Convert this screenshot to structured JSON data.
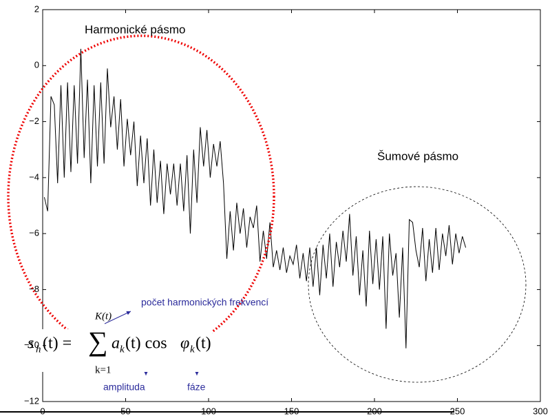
{
  "chart_data": {
    "type": "line",
    "xlim": [
      0,
      300
    ],
    "xticks": [
      0,
      50,
      100,
      150,
      200,
      250,
      300
    ],
    "ylim": [
      -12,
      2
    ],
    "yticks": [
      {
        "value": -12,
        "label": "−12"
      },
      {
        "value": -10,
        "label": "−10"
      },
      {
        "value": -8,
        "label": "−8"
      },
      {
        "value": -6,
        "label": "−6"
      },
      {
        "value": -4,
        "label": "−4"
      },
      {
        "value": -2,
        "label": "−2"
      },
      0,
      2
    ],
    "color": "#000000",
    "x": [
      1,
      3,
      5,
      7,
      9,
      11,
      13,
      15,
      17,
      19,
      21,
      23,
      25,
      27,
      29,
      31,
      33,
      35,
      37,
      39,
      41,
      43,
      45,
      47,
      49,
      51,
      53,
      55,
      57,
      59,
      61,
      63,
      65,
      67,
      69,
      71,
      73,
      75,
      77,
      79,
      81,
      83,
      85,
      87,
      89,
      91,
      93,
      95,
      97,
      99,
      101,
      103,
      105,
      107,
      109,
      111,
      113,
      115,
      117,
      119,
      121,
      123,
      125,
      127,
      129,
      131,
      133,
      135,
      137,
      139,
      141,
      143,
      145,
      147,
      149,
      151,
      153,
      155,
      157,
      159,
      161,
      163,
      165,
      167,
      169,
      171,
      173,
      175,
      177,
      179,
      181,
      183,
      185,
      187,
      189,
      191,
      193,
      195,
      197,
      199,
      201,
      203,
      205,
      207,
      209,
      211,
      213,
      215,
      217,
      219,
      221,
      223,
      225,
      227,
      229,
      231,
      233,
      235,
      237,
      239,
      241,
      243,
      245,
      247,
      249,
      251,
      253,
      255
    ],
    "values": [
      -4.7,
      -5.2,
      -1.1,
      -1.4,
      -4.2,
      -0.7,
      -4.0,
      -0.6,
      -3.8,
      -0.7,
      -3.5,
      0.6,
      -3.3,
      -0.5,
      -4.2,
      -0.7,
      -3.6,
      -0.6,
      -3.5,
      -0.1,
      -2.2,
      -1.1,
      -3.0,
      -1.2,
      -3.6,
      -1.9,
      -3.2,
      -2.0,
      -4.3,
      -2.5,
      -4.2,
      -2.6,
      -5.0,
      -3.0,
      -4.9,
      -3.4,
      -5.3,
      -3.5,
      -4.6,
      -3.5,
      -5.0,
      -3.5,
      -5.2,
      -3.2,
      -6.0,
      -3.0,
      -4.9,
      -2.2,
      -3.6,
      -2.3,
      -4.0,
      -2.8,
      -3.6,
      -2.7,
      -4.2,
      -6.9,
      -5.2,
      -6.6,
      -4.9,
      -6.0,
      -5.1,
      -6.5,
      -5.4,
      -5.8,
      -5.0,
      -7.0,
      -5.9,
      -6.9,
      -5.6,
      -7.2,
      -6.6,
      -7.3,
      -6.5,
      -7.4,
      -6.8,
      -7.1,
      -6.4,
      -7.6,
      -6.7,
      -7.7,
      -6.5,
      -7.9,
      -6.5,
      -8.2,
      -6.4,
      -7.6,
      -6.0,
      -7.9,
      -6.3,
      -7.2,
      -5.9,
      -7.0,
      -5.3,
      -7.5,
      -6.1,
      -8.2,
      -6.6,
      -8.6,
      -5.9,
      -7.8,
      -6.2,
      -8.0,
      -6.1,
      -9.4,
      -6.0,
      -7.5,
      -6.7,
      -9.0,
      -6.5,
      -10.1,
      -5.5,
      -5.6,
      -6.6,
      -7.2,
      -5.8,
      -7.7,
      -6.2,
      -7.4,
      -5.8,
      -7.3,
      -6.0,
      -6.8,
      -5.7,
      -7.1,
      -6.0,
      -6.7,
      -6.1,
      -6.5
    ],
    "annotations": {
      "harmonic": "Harmonické pásmo",
      "noise": "Šumové pásmo",
      "count": "počet harmonických frekvencí",
      "amplitude": "amplituda",
      "phase": "fáze"
    },
    "formula": {
      "s": "s",
      "h": "h",
      "lhs": "(t) =",
      "sum": "∑",
      "upper": "K(t)",
      "lower": "k=1",
      "a": "a",
      "ak": "k",
      "mid": "(t) cos",
      "phi": "φ",
      "phik": "k",
      "end": "(t)"
    }
  }
}
